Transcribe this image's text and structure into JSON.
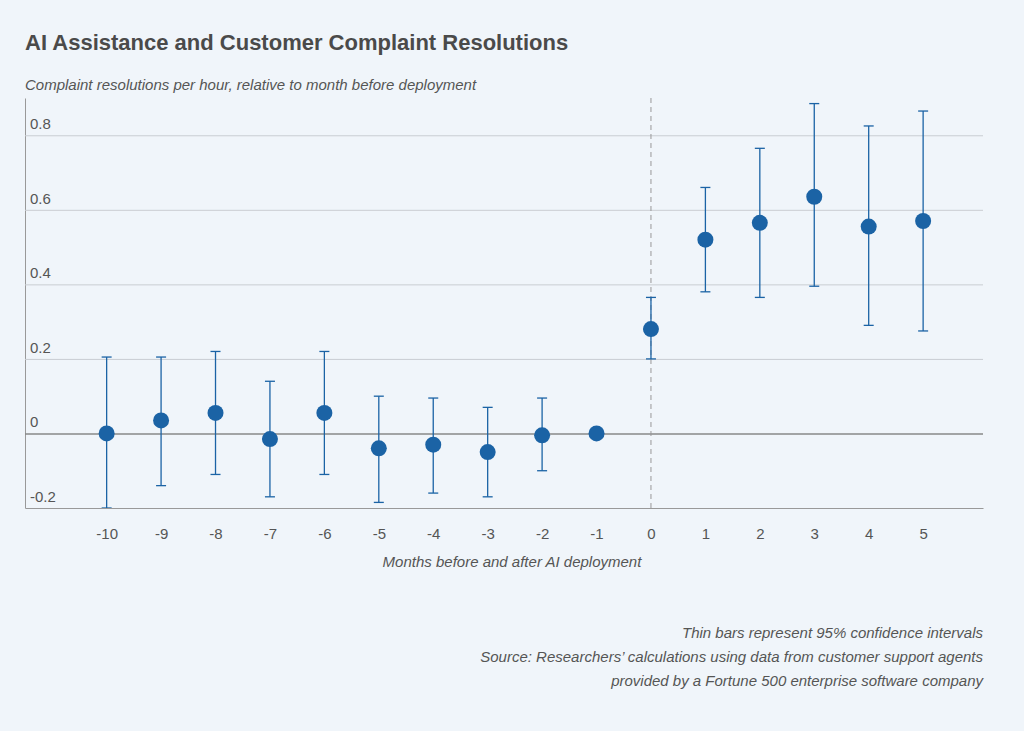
{
  "chart_data": {
    "type": "scatter",
    "title": "AI Assistance and Customer Complaint Resolutions",
    "y_label": "Complaint resolutions per hour, relative to month before deployment",
    "x_label": "Months before and after AI deployment",
    "notes": [
      "Thin bars represent 95% confidence intervals",
      "Source: Researchers’ calculations using data from customer support agents",
      "provided by a Fortune 500 enterprise software company"
    ],
    "x": [
      -10,
      -9,
      -8,
      -7,
      -6,
      -5,
      -4,
      -3,
      -2,
      -1,
      0,
      1,
      2,
      3,
      4,
      5
    ],
    "series": [
      {
        "color": "#1b63a5",
        "marker": "circle",
        "values": [
          0.0,
          0.035,
          0.055,
          -0.015,
          0.055,
          -0.04,
          -0.03,
          -0.05,
          -0.005,
          0.0,
          0.28,
          0.52,
          0.565,
          0.635,
          0.555,
          0.57
        ],
        "ci_lower": [
          -0.2,
          -0.14,
          -0.11,
          -0.17,
          -0.11,
          -0.185,
          -0.16,
          -0.17,
          -0.1,
          null,
          0.2,
          0.38,
          0.365,
          0.395,
          0.29,
          0.275
        ],
        "ci_upper": [
          0.205,
          0.205,
          0.22,
          0.14,
          0.22,
          0.1,
          0.095,
          0.07,
          0.095,
          null,
          0.365,
          0.66,
          0.765,
          0.885,
          0.825,
          0.865
        ]
      }
    ],
    "xlim": [
      -11.5,
      6.1
    ],
    "ylim": [
      -0.2,
      0.9
    ],
    "xticks": [
      -10,
      -9,
      -8,
      -7,
      -6,
      -5,
      -4,
      -3,
      -2,
      -1,
      0,
      1,
      2,
      3,
      4,
      5
    ],
    "yticks": [
      -0.2,
      0,
      0.2,
      0.4,
      0.6,
      0.8
    ],
    "grid": true,
    "deployment_x": 0
  }
}
